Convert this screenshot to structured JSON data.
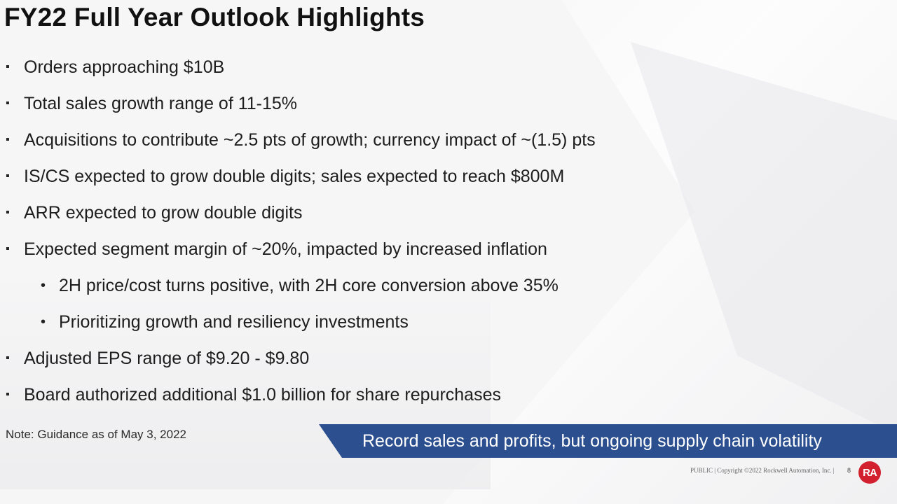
{
  "slide": {
    "title": "FY22 Full Year Outlook Highlights",
    "bullets": [
      {
        "level": 0,
        "marker": "▪",
        "text": "Orders approaching $10B"
      },
      {
        "level": 0,
        "marker": "▪",
        "text": "Total sales growth range of 11-15%"
      },
      {
        "level": 0,
        "marker": "▪",
        "text": "Acquisitions to contribute ~2.5 pts of growth; currency impact of ~(1.5) pts"
      },
      {
        "level": 0,
        "marker": "▪",
        "text": "IS/CS expected to grow double digits; sales expected to reach $800M"
      },
      {
        "level": 0,
        "marker": "▪",
        "text": "ARR expected to grow double digits"
      },
      {
        "level": 0,
        "marker": "▪",
        "text": "Expected segment margin of ~20%, impacted by increased inflation"
      },
      {
        "level": 1,
        "marker": "•",
        "text": "2H price/cost turns positive, with 2H core conversion above 35%"
      },
      {
        "level": 1,
        "marker": "•",
        "text": "Prioritizing growth and resiliency investments"
      },
      {
        "level": 0,
        "marker": "▪",
        "text": "Adjusted EPS range of $9.20 - $9.80"
      },
      {
        "level": 0,
        "marker": "▪",
        "text": "Board authorized additional $1.0 billion for share repurchases"
      }
    ],
    "note": "Note: Guidance as of May 3, 2022",
    "banner": "Record sales and profits, but ongoing supply chain volatility",
    "footer": "PUBLIC | Copyright ©2022 Rockwell Automation, Inc. |",
    "page_number": "8",
    "logo_text": "RA"
  },
  "colors": {
    "banner": "#2c4f8f",
    "logo": "#d3202e",
    "background": "#f6f6f7"
  }
}
